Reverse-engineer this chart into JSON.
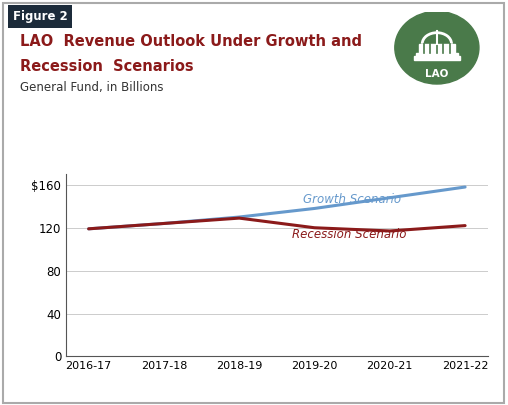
{
  "title_line1": "LAO  Revenue Outlook Under Growth and",
  "title_line2": "Recession  Scenarios",
  "subtitle": "General Fund, in Billions",
  "figure_label": "Figure 2",
  "x_labels": [
    "2016-17",
    "2017-18",
    "2018-19",
    "2019-20",
    "2020-21",
    "2021-22"
  ],
  "growth_values": [
    119,
    124,
    130,
    138,
    148,
    158
  ],
  "recession_values": [
    119,
    124,
    129,
    120,
    117,
    122
  ],
  "growth_color": "#6699CC",
  "recession_color": "#8B1A1A",
  "growth_label": "Growth Scenario",
  "recession_label": "Recession Scenario",
  "ylim": [
    0,
    170
  ],
  "yticks": [
    0,
    40,
    80,
    120,
    160
  ],
  "ytick_labels": [
    "0",
    "40",
    "80",
    "120",
    "$160"
  ],
  "background_color": "#FFFFFF",
  "border_color": "#AAAAAA",
  "figure_label_bg": "#1C2B3A",
  "figure_label_color": "#FFFFFF",
  "lao_circle_color": "#4A7A4A",
  "title_color": "#8B1A1A"
}
